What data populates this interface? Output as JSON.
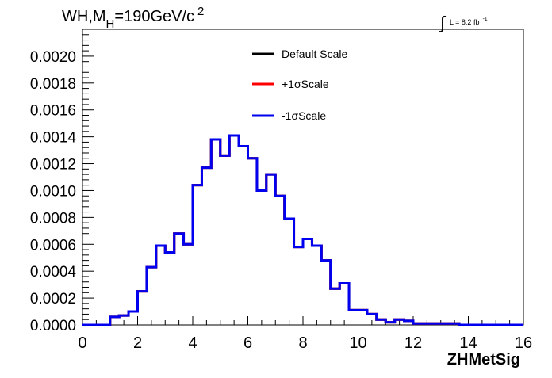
{
  "title": {
    "prefix": "WH,M",
    "sub": "H",
    "value": "=190GeV/c",
    "sup": "2"
  },
  "lumi": {
    "integral": "∫",
    "text": "L = 8.2 fb",
    "sup": "-1"
  },
  "chart_data": {
    "type": "line",
    "xlabel": "ZHMetSig",
    "ylabel": "",
    "xlim": [
      0,
      16
    ],
    "ylim": [
      0,
      0.0022
    ],
    "x_ticks": [
      "0",
      "2",
      "4",
      "6",
      "8",
      "10",
      "12",
      "14",
      "16"
    ],
    "y_ticks": [
      "0.0000",
      "0.0002",
      "0.0004",
      "0.0006",
      "0.0008",
      "0.0010",
      "0.0012",
      "0.0014",
      "0.0016",
      "0.0018",
      "0.0020"
    ],
    "x_tick_values": [
      0,
      2,
      4,
      6,
      8,
      10,
      12,
      14,
      16
    ],
    "y_tick_values": [
      0,
      0.0002,
      0.0004,
      0.0006,
      0.0008,
      0.001,
      0.0012,
      0.0014,
      0.0016,
      0.0018,
      0.002
    ],
    "bin_edges": [
      0,
      0.33,
      0.67,
      1.0,
      1.33,
      1.67,
      2.0,
      2.33,
      2.67,
      3.0,
      3.33,
      3.67,
      4.0,
      4.33,
      4.67,
      5.0,
      5.33,
      5.67,
      6.0,
      6.33,
      6.67,
      7.0,
      7.33,
      7.67,
      8.0,
      8.33,
      8.67,
      9.0,
      9.33,
      9.67,
      10.0,
      10.33,
      10.67,
      11.0,
      11.33,
      11.67,
      12.0,
      12.33,
      12.67,
      13.0,
      13.33,
      13.67,
      14.0,
      14.33,
      14.67,
      15.0,
      15.33,
      15.67,
      16.0
    ],
    "series": [
      {
        "name": "Default Scale",
        "color": "#000000",
        "values": [
          0,
          0,
          0,
          6e-05,
          7e-05,
          0.0001,
          0.00025,
          0.00043,
          0.00059,
          0.00054,
          0.00068,
          0.0006,
          0.00104,
          0.00117,
          0.00138,
          0.00126,
          0.00141,
          0.00133,
          0.00124,
          0.001,
          0.00112,
          0.00096,
          0.00079,
          0.00058,
          0.00064,
          0.00059,
          0.00048,
          0.00027,
          0.00031,
          0.00011,
          0.00011,
          8e-05,
          4e-05,
          2e-05,
          4e-05,
          3e-05,
          1e-05,
          1e-05,
          1e-05,
          1e-05,
          1e-05,
          0,
          0,
          0,
          0,
          0,
          0,
          0
        ]
      },
      {
        "name": "+1σScale",
        "color": "#ff0000",
        "values": [
          0,
          0,
          0,
          6e-05,
          7e-05,
          0.0001,
          0.00025,
          0.00043,
          0.00059,
          0.00054,
          0.00068,
          0.0006,
          0.00104,
          0.00117,
          0.00138,
          0.00126,
          0.00141,
          0.00133,
          0.00124,
          0.001,
          0.00112,
          0.00096,
          0.00079,
          0.00058,
          0.00064,
          0.00059,
          0.00048,
          0.00027,
          0.00031,
          0.00011,
          0.00011,
          8e-05,
          4e-05,
          2e-05,
          4e-05,
          3e-05,
          1e-05,
          1e-05,
          1e-05,
          1e-05,
          1e-05,
          0,
          0,
          0,
          0,
          0,
          0,
          0
        ]
      },
      {
        "name": "-1σScale",
        "color": "#0000ee",
        "values": [
          0,
          0,
          0,
          6e-05,
          7e-05,
          0.0001,
          0.00025,
          0.00043,
          0.00059,
          0.00054,
          0.00068,
          0.0006,
          0.00104,
          0.00117,
          0.00138,
          0.00126,
          0.00141,
          0.00133,
          0.00124,
          0.001,
          0.00112,
          0.00096,
          0.00079,
          0.00058,
          0.00064,
          0.00059,
          0.00048,
          0.00027,
          0.00031,
          0.00011,
          0.00011,
          8e-05,
          4e-05,
          2e-05,
          4e-05,
          3e-05,
          1e-05,
          1e-05,
          1e-05,
          1e-05,
          1e-05,
          0,
          0,
          0,
          0,
          0,
          0,
          0
        ]
      }
    ],
    "legend_position": "top-center",
    "grid": false
  }
}
